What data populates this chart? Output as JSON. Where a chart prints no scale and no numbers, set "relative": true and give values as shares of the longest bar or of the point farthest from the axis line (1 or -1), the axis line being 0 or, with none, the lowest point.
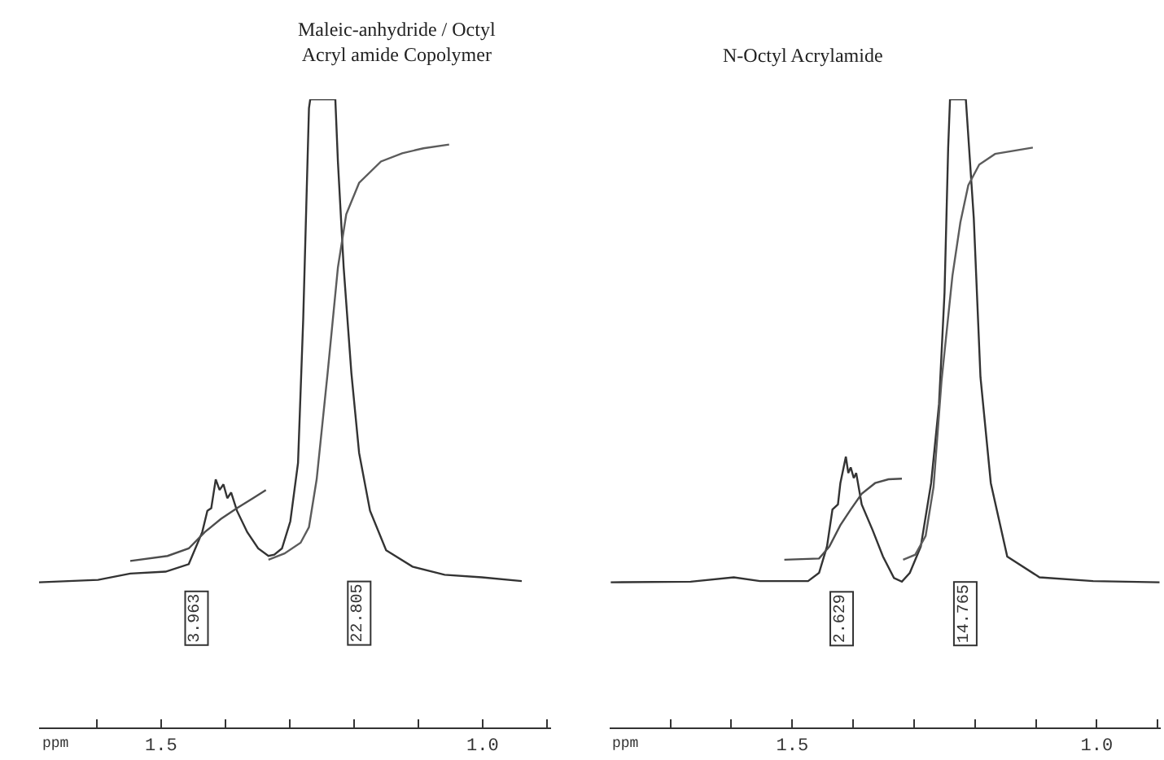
{
  "chart_data": [
    {
      "type": "line",
      "title": "Maleic-anhydride / Octyl\nAcryl amide Copolymer",
      "xlabel": "ppm",
      "relative": true,
      "xlim": [
        1.69,
        0.893
      ],
      "xticks": [
        {
          "value": 1.6,
          "label": null
        },
        {
          "value": 1.5,
          "label": "1.5"
        },
        {
          "value": 1.4,
          "label": null
        },
        {
          "value": 1.3,
          "label": null
        },
        {
          "value": 1.2,
          "label": null
        },
        {
          "value": 1.1,
          "label": null
        },
        {
          "value": 1.0,
          "label": "1.0"
        },
        {
          "value": 0.9,
          "label": null
        }
      ],
      "marker": "none",
      "line_style": "solid",
      "annotations": [
        {
          "text": "3.963",
          "x": 1.444
        },
        {
          "text": "22.805",
          "x": 1.191
        }
      ],
      "series": [
        {
          "color": "#333333",
          "x": [
            1.69,
            1.598,
            1.548,
            1.493,
            1.457,
            1.436,
            1.428,
            1.422,
            1.415,
            1.409,
            1.403,
            1.397,
            1.391,
            1.382,
            1.366,
            1.349,
            1.333,
            1.324,
            1.312,
            1.299,
            1.287,
            1.279,
            1.27,
            1.268,
            1.248,
            1.229,
            1.225,
            1.216,
            1.204,
            1.192,
            1.175,
            1.15,
            1.109,
            1.059,
            1.001,
            0.939
          ],
          "values": [
            0.231,
            0.235,
            0.245,
            0.248,
            0.26,
            0.311,
            0.345,
            0.349,
            0.395,
            0.378,
            0.387,
            0.365,
            0.374,
            0.345,
            0.311,
            0.285,
            0.273,
            0.275,
            0.285,
            0.328,
            0.421,
            0.648,
            0.986,
            1,
            1,
            1,
            0.901,
            0.732,
            0.564,
            0.437,
            0.345,
            0.282,
            0.256,
            0.243,
            0.239,
            0.233
          ]
        },
        {
          "color": "#4d4d4d",
          "x": [
            1.548,
            1.49,
            1.457,
            1.432,
            1.407,
            1.382,
            1.357,
            1.337
          ],
          "values": [
            0.265,
            0.273,
            0.285,
            0.311,
            0.332,
            0.349,
            0.365,
            0.378
          ]
        },
        {
          "color": "#5c5c5c",
          "x": [
            1.333,
            1.308,
            1.283,
            1.27,
            1.258,
            1.241,
            1.225,
            1.212,
            1.192,
            1.158,
            1.125,
            1.092,
            1.052
          ],
          "values": [
            0.267,
            0.277,
            0.294,
            0.319,
            0.395,
            0.564,
            0.732,
            0.817,
            0.867,
            0.901,
            0.914,
            0.922,
            0.928
          ]
        }
      ]
    },
    {
      "type": "line",
      "title": "N-Octyl Acrylamide",
      "xlabel": "ppm",
      "relative": true,
      "xlim": [
        1.8,
        0.895
      ],
      "xticks": [
        {
          "value": 1.7,
          "label": null
        },
        {
          "value": 1.6,
          "label": null
        },
        {
          "value": 1.5,
          "label": "1.5"
        },
        {
          "value": 1.4,
          "label": null
        },
        {
          "value": 1.3,
          "label": null
        },
        {
          "value": 1.2,
          "label": null
        },
        {
          "value": 1.1,
          "label": null
        },
        {
          "value": 1.0,
          "label": "1.0"
        },
        {
          "value": 0.9,
          "label": null
        }
      ],
      "marker": "none",
      "line_style": "solid",
      "annotations": [
        {
          "text": "2.629",
          "x": 1.418
        },
        {
          "text": "14.765",
          "x": 1.215
        }
      ],
      "series": [
        {
          "color": "#333333",
          "x": [
            1.798,
            1.667,
            1.596,
            1.553,
            1.474,
            1.456,
            1.443,
            1.434,
            1.425,
            1.421,
            1.412,
            1.408,
            1.404,
            1.399,
            1.395,
            1.386,
            1.368,
            1.351,
            1.333,
            1.32,
            1.307,
            1.289,
            1.272,
            1.259,
            1.25,
            1.244,
            1.241,
            1.228,
            1.215,
            1.202,
            1.191,
            1.174,
            1.147,
            1.094,
            1.006,
            0.897
          ],
          "values": [
            0.231,
            0.232,
            0.239,
            0.233,
            0.233,
            0.246,
            0.288,
            0.347,
            0.355,
            0.389,
            0.431,
            0.405,
            0.414,
            0.397,
            0.405,
            0.355,
            0.314,
            0.272,
            0.238,
            0.232,
            0.246,
            0.288,
            0.389,
            0.515,
            0.692,
            0.923,
            1,
            1,
            1,
            0.811,
            0.558,
            0.389,
            0.272,
            0.239,
            0.233,
            0.231
          ]
        },
        {
          "color": "#4d4d4d",
          "x": [
            1.513,
            1.456,
            1.439,
            1.421,
            1.404,
            1.386,
            1.364,
            1.342,
            1.32
          ],
          "values": [
            0.267,
            0.269,
            0.288,
            0.322,
            0.347,
            0.372,
            0.389,
            0.395,
            0.396
          ]
        },
        {
          "color": "#5c5c5c",
          "x": [
            1.318,
            1.298,
            1.281,
            1.268,
            1.255,
            1.237,
            1.224,
            1.211,
            1.193,
            1.167,
            1.105
          ],
          "values": [
            0.267,
            0.275,
            0.305,
            0.383,
            0.551,
            0.719,
            0.804,
            0.863,
            0.896,
            0.913,
            0.923
          ]
        }
      ]
    }
  ]
}
